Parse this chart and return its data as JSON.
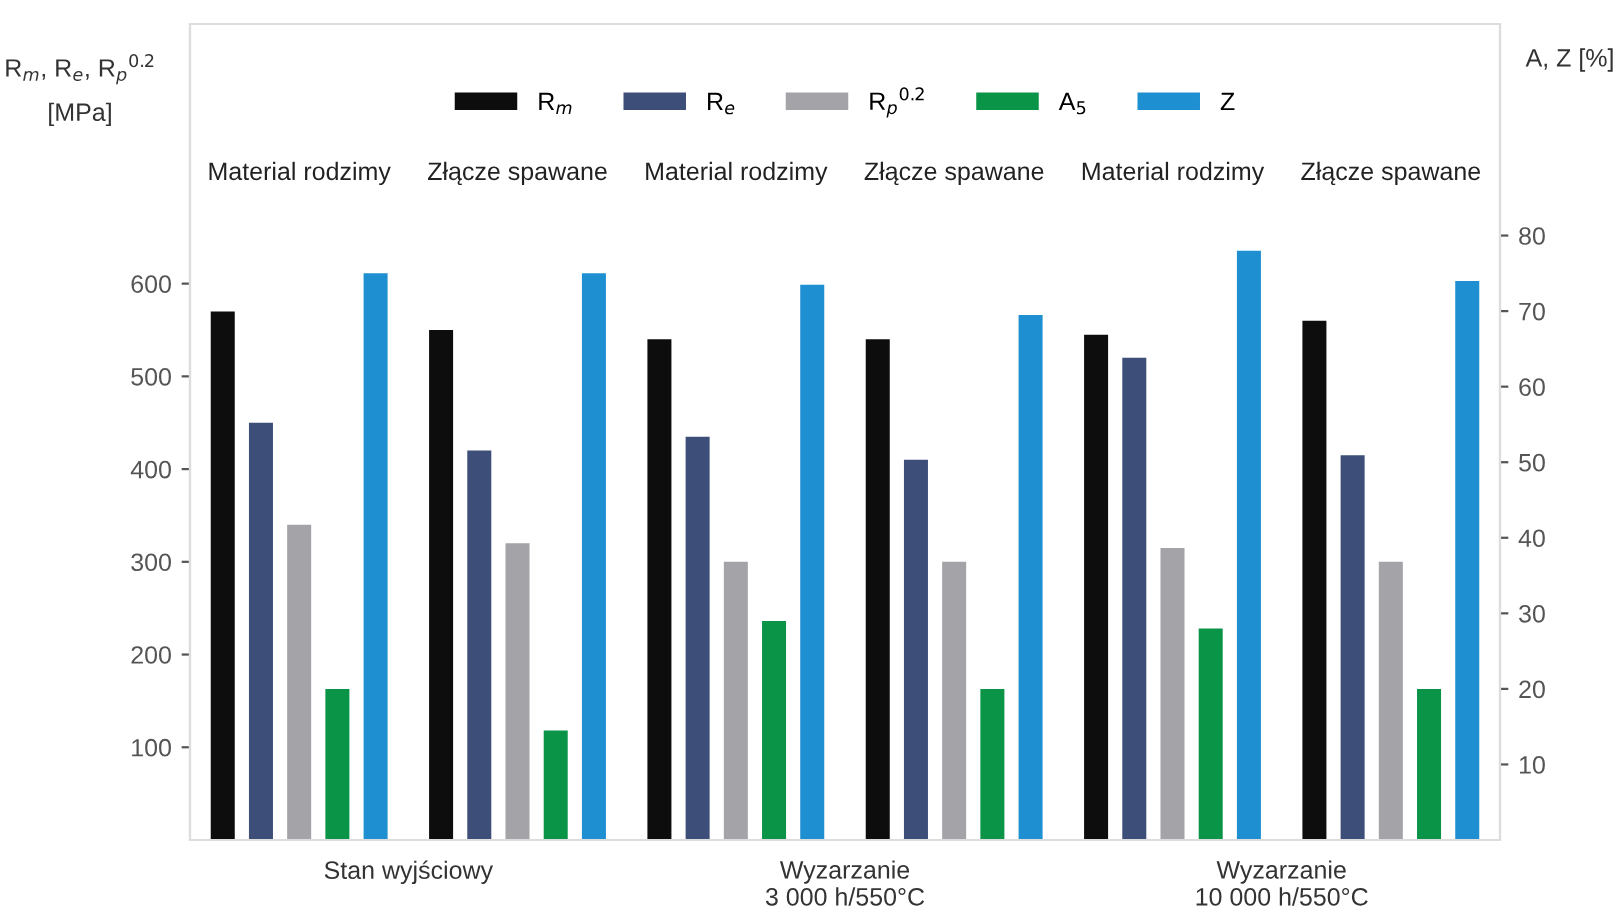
{
  "chart_data": {
    "type": "bar",
    "ylabel": "R$_{m}$, R$_{e}$, R$_{p}$$^{0.2}$\n[MPa]",
    "y2label": "A, Z [%]",
    "categories": [
      "Material rodzimy",
      "Złącze spawane",
      "Material rodzimy",
      "Złącze spawane",
      "Material rodzimy",
      "Złącze spawane"
    ],
    "series": [
      {
        "name": "R$_{m}$",
        "color": "#0d0d0d",
        "values": [
          570,
          550,
          540,
          540,
          545,
          560
        ]
      },
      {
        "name": "R$_{e}$",
        "color": "#3d4f78",
        "values": [
          450,
          420,
          435,
          410,
          520,
          415
        ]
      },
      {
        "name": "R$_{p}$$^{0.2}$",
        "color": "#a3a3a8",
        "values": [
          340,
          320,
          300,
          300,
          315,
          300
        ]
      },
      {
        "name": "A$_{5}$",
        "color": "#0a9448",
        "values": [
          20,
          14.5,
          29,
          20,
          28,
          20
        ],
        "axis": "y2"
      },
      {
        "name": "Z",
        "color": "#1e8fd0",
        "values": [
          75,
          75,
          73.5,
          69.5,
          78,
          74
        ],
        "axis": "y2"
      }
    ],
    "ylim": [
      0,
      880
    ],
    "yticks": [
      100,
      200,
      300,
      400,
      500,
      600
    ],
    "y2lim": [
      0,
      108
    ],
    "y2ticks": [
      10,
      20,
      30,
      40,
      50,
      60,
      70,
      80
    ],
    "annotations": [
      "Stan wyjściowy",
      "Wyzarzanie\n3 000 h/550°C",
      "Wyzarzanie\n10 000 h/550°C"
    ],
    "legend": "top",
    "grid": false
  }
}
